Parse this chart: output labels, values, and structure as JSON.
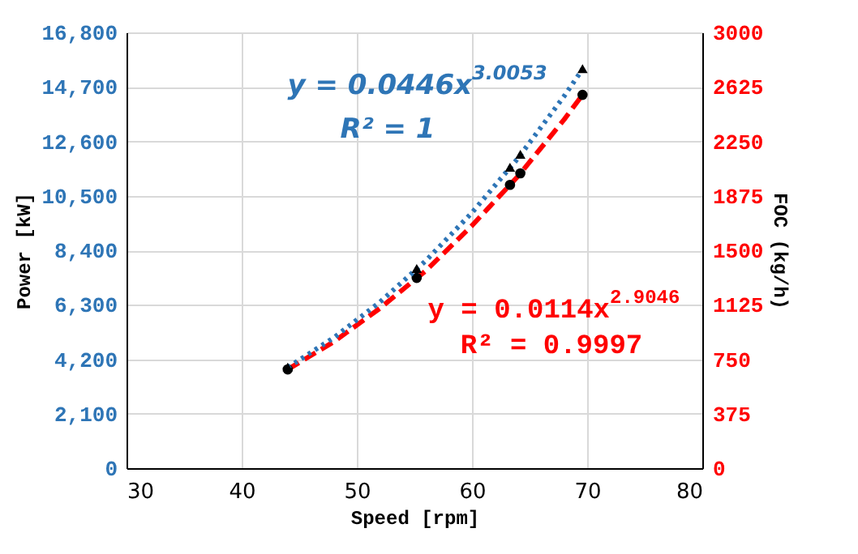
{
  "chart_data": {
    "type": "scatter",
    "xlabel": "Speed [rpm]",
    "ylabel": "Power [kW]",
    "y2label": "FOC (kg/h)",
    "xlim": [
      30,
      80
    ],
    "xticks": [
      30,
      40,
      50,
      60,
      70,
      80
    ],
    "ylim": [
      0,
      16800
    ],
    "yticks": [
      0,
      {
        "value": 2100,
        "label": "2,100"
      },
      {
        "value": 4200,
        "label": "4,200"
      },
      {
        "value": 6300,
        "label": "6,300"
      },
      {
        "value": 8400,
        "label": "8,400"
      },
      {
        "value": 10500,
        "label": "10,500"
      },
      {
        "value": 12600,
        "label": "12,600"
      },
      {
        "value": 14700,
        "label": "14,700"
      },
      {
        "value": 16800,
        "label": "16,800"
      }
    ],
    "y2lim": [
      0,
      3000
    ],
    "y2ticks": [
      0,
      375,
      750,
      1125,
      1500,
      1875,
      2250,
      2625,
      3000
    ],
    "grid": true,
    "series": [
      {
        "type": "line",
        "color": "#2e75b6",
        "line_style": "dotted",
        "marker": "none",
        "x": [
          44,
          48,
          52,
          56,
          60,
          64,
          68,
          69.6
        ],
        "values": [
          3880,
          5030,
          6400,
          8000,
          9850,
          11950,
          14340,
          15380
        ]
      },
      {
        "type": "line",
        "color": "#ff0000",
        "line_style": "dashed",
        "marker": "none",
        "axis": "y2",
        "x": [
          44,
          48,
          52,
          56,
          60,
          64,
          68,
          69.6
        ],
        "values": [
          680,
          870,
          1100,
          1360,
          1670,
          2010,
          2400,
          2570
        ]
      },
      {
        "color": "#000000",
        "marker": "triangle",
        "x": [
          44,
          55.2,
          63.3,
          64.2,
          69.6
        ],
        "values": [
          3900,
          7700,
          11600,
          12100,
          15400
        ]
      },
      {
        "color": "#000000",
        "marker": "circle",
        "axis": "y2",
        "x": [
          44,
          55.2,
          63.3,
          64.2,
          69.6
        ],
        "values": [
          680,
          1310,
          1950,
          2030,
          2570
        ]
      }
    ],
    "annotations": [
      "y = 0.0446x$^{3.0053}$",
      "R² = 1",
      "y = 0.0114x$^{2.9046}$",
      "R² = 0.9997"
    ]
  }
}
